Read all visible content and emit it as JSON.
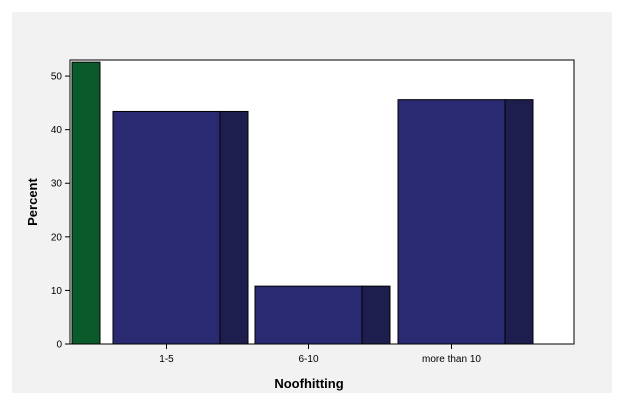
{
  "chart_data": {
    "type": "bar",
    "categories": [
      "",
      "1-5",
      "6-10",
      "more than 10"
    ],
    "values": [
      52.6,
      43.4,
      10.8,
      45.6
    ],
    "xlabel": "Noofhitting",
    "ylabel": "Percent",
    "ylim": [
      0,
      53
    ],
    "yticks": [
      0,
      10,
      20,
      30,
      40,
      50
    ],
    "grid": false,
    "legend": "none",
    "colors": {
      "background": "#f2f2f2",
      "plot_background": "#ffffff",
      "first_bar": "#0b5a2c",
      "first_bar_shade": "#0b4a24",
      "bars": "#2a2a72",
      "bars_shade": "#1e1e4e"
    }
  }
}
